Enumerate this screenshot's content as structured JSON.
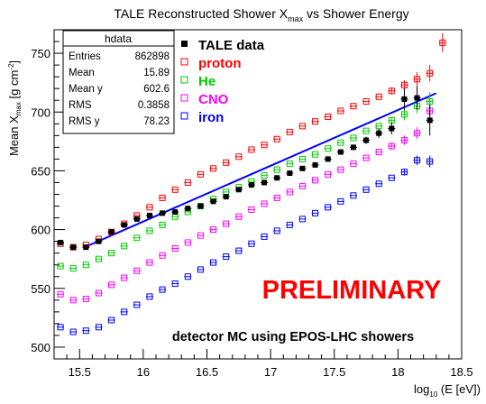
{
  "chart_data": {
    "type": "scatter",
    "title_main": "TALE Reconstructed Shower X",
    "title_sub": "max",
    "title_tail": " vs Shower Energy",
    "ylabel_main": "Mean X",
    "ylabel_sub": "max",
    "ylabel_unit": " [g cm",
    "ylabel_sup": "-2",
    "ylabel_close": "]",
    "xlabel_pre": "log",
    "xlabel_sub": "10",
    "xlabel_post": " (E [eV])",
    "xlim": [
      15.3,
      18.5
    ],
    "ylim": [
      490,
      770
    ],
    "x_ticks": [
      15.5,
      16,
      16.5,
      17,
      17.5,
      18,
      18.5
    ],
    "x_tick_labels": [
      "15.5",
      "16",
      "16.5",
      "17",
      "17.5",
      "18",
      "18.5"
    ],
    "y_ticks": [
      500,
      550,
      600,
      650,
      700,
      750
    ],
    "y_tick_labels": [
      "500",
      "550",
      "600",
      "650",
      "700",
      "750"
    ],
    "stats_box": {
      "title": "hdata",
      "rows": [
        {
          "label": "Entries",
          "value": "862898"
        },
        {
          "label": "Mean",
          "value": "15.89"
        },
        {
          "label": "Mean y",
          "value": "602.6"
        },
        {
          "label": "RMS",
          "value": "0.3858"
        },
        {
          "label": "RMS y",
          "value": "78.23"
        }
      ]
    },
    "legend_position": "top-center",
    "series": [
      {
        "name": "TALE data",
        "color": "#000000",
        "marker": "filled-square",
        "x": [
          15.35,
          15.45,
          15.55,
          15.65,
          15.75,
          15.85,
          15.95,
          16.05,
          16.15,
          16.25,
          16.35,
          16.45,
          16.55,
          16.65,
          16.75,
          16.85,
          16.95,
          17.05,
          17.15,
          17.25,
          17.35,
          17.45,
          17.55,
          17.65,
          17.75,
          17.85,
          17.95,
          18.05,
          18.15,
          18.25
        ],
        "y": [
          589,
          585,
          585,
          590,
          598,
          604,
          609,
          612,
          614,
          615,
          618,
          620,
          624,
          628,
          634,
          638,
          640,
          644,
          648,
          652,
          655,
          660,
          666,
          670,
          676,
          682,
          686,
          711,
          712,
          693
        ],
        "yerr": [
          2,
          1,
          1,
          1,
          1,
          1,
          1,
          1,
          1,
          1,
          1,
          1,
          1,
          1,
          1,
          1,
          1,
          1,
          1,
          1,
          1,
          1,
          2,
          2,
          3,
          4,
          5,
          9,
          10,
          13
        ]
      },
      {
        "name": "proton",
        "color": "#ff0000",
        "marker": "open-square",
        "x": [
          15.35,
          15.45,
          15.55,
          15.65,
          15.75,
          15.85,
          15.95,
          16.05,
          16.15,
          16.25,
          16.35,
          16.45,
          16.55,
          16.65,
          16.75,
          16.85,
          16.95,
          17.05,
          17.15,
          17.25,
          17.35,
          17.45,
          17.55,
          17.65,
          17.75,
          17.85,
          17.95,
          18.05,
          18.15,
          18.25,
          18.35
        ],
        "y": [
          588,
          585,
          587,
          592,
          598,
          605,
          612,
          619,
          627,
          634,
          640,
          647,
          652,
          657,
          662,
          668,
          672,
          677,
          683,
          688,
          692,
          696,
          701,
          705,
          709,
          713,
          718,
          723,
          728,
          733,
          759
        ],
        "yerr": [
          1,
          1,
          1,
          1,
          1,
          1,
          1,
          1,
          1,
          1,
          1,
          1,
          1,
          1,
          1,
          1,
          1,
          1,
          1,
          1,
          1,
          1,
          1,
          1,
          2,
          2,
          3,
          4,
          6,
          7,
          8
        ]
      },
      {
        "name": "He",
        "color": "#00cc00",
        "marker": "open-square",
        "x": [
          15.35,
          15.45,
          15.55,
          15.65,
          15.75,
          15.85,
          15.95,
          16.05,
          16.15,
          16.25,
          16.35,
          16.45,
          16.55,
          16.65,
          16.75,
          16.85,
          16.95,
          17.05,
          17.15,
          17.25,
          17.35,
          17.45,
          17.55,
          17.65,
          17.75,
          17.85,
          17.95,
          18.05,
          18.15,
          18.25
        ],
        "y": [
          569,
          567,
          570,
          575,
          580,
          586,
          593,
          599,
          604,
          611,
          615,
          620,
          626,
          632,
          636,
          641,
          646,
          651,
          656,
          660,
          664,
          669,
          674,
          678,
          684,
          688,
          693,
          698,
          705,
          709
        ],
        "yerr": [
          1,
          1,
          1,
          1,
          1,
          1,
          1,
          1,
          1,
          1,
          1,
          1,
          1,
          1,
          1,
          1,
          1,
          1,
          1,
          1,
          1,
          1,
          1,
          2,
          2,
          2,
          3,
          5,
          6,
          8
        ]
      },
      {
        "name": "CNO",
        "color": "#ff00ff",
        "marker": "open-square",
        "x": [
          15.35,
          15.45,
          15.55,
          15.65,
          15.75,
          15.85,
          15.95,
          16.05,
          16.15,
          16.25,
          16.35,
          16.45,
          16.55,
          16.65,
          16.75,
          16.85,
          16.95,
          17.05,
          17.15,
          17.25,
          17.35,
          17.45,
          17.55,
          17.65,
          17.75,
          17.85,
          17.95,
          18.05,
          18.15,
          18.25
        ],
        "y": [
          545,
          540,
          541,
          546,
          553,
          559,
          565,
          572,
          578,
          584,
          589,
          595,
          600,
          605,
          611,
          617,
          622,
          627,
          632,
          637,
          642,
          647,
          651,
          656,
          661,
          666,
          671,
          676,
          682,
          701
        ],
        "yerr": [
          1,
          1,
          1,
          1,
          1,
          1,
          1,
          1,
          1,
          1,
          1,
          1,
          1,
          1,
          1,
          1,
          1,
          1,
          1,
          1,
          1,
          1,
          1,
          1,
          2,
          2,
          3,
          4,
          5,
          10
        ]
      },
      {
        "name": "iron",
        "color": "#0000ff",
        "marker": "open-square",
        "x": [
          15.35,
          15.45,
          15.55,
          15.65,
          15.75,
          15.85,
          15.95,
          16.05,
          16.15,
          16.25,
          16.35,
          16.45,
          16.55,
          16.65,
          16.75,
          16.85,
          16.95,
          17.05,
          17.15,
          17.25,
          17.35,
          17.45,
          17.55,
          17.65,
          17.75,
          17.85,
          17.95,
          18.05,
          18.15,
          18.25
        ],
        "y": [
          517,
          513,
          514,
          517,
          523,
          530,
          536,
          543,
          549,
          554,
          560,
          566,
          572,
          577,
          582,
          588,
          594,
          599,
          604,
          609,
          614,
          619,
          624,
          629,
          634,
          639,
          644,
          649,
          659,
          658
        ],
        "yerr": [
          1,
          1,
          1,
          1,
          1,
          1,
          1,
          1,
          1,
          1,
          1,
          1,
          1,
          1,
          1,
          1,
          1,
          1,
          1,
          1,
          1,
          1,
          1,
          1,
          1,
          2,
          2,
          3,
          4,
          5
        ]
      }
    ],
    "fit_line": {
      "color": "#0000ff",
      "x": [
        15.55,
        18.3
      ],
      "y": [
        585.5,
        716
      ]
    },
    "annotations": {
      "preliminary": "PRELIMINARY",
      "preliminary_color": "#ff0000",
      "mc_note": "detector MC using EPOS-LHC showers"
    }
  }
}
